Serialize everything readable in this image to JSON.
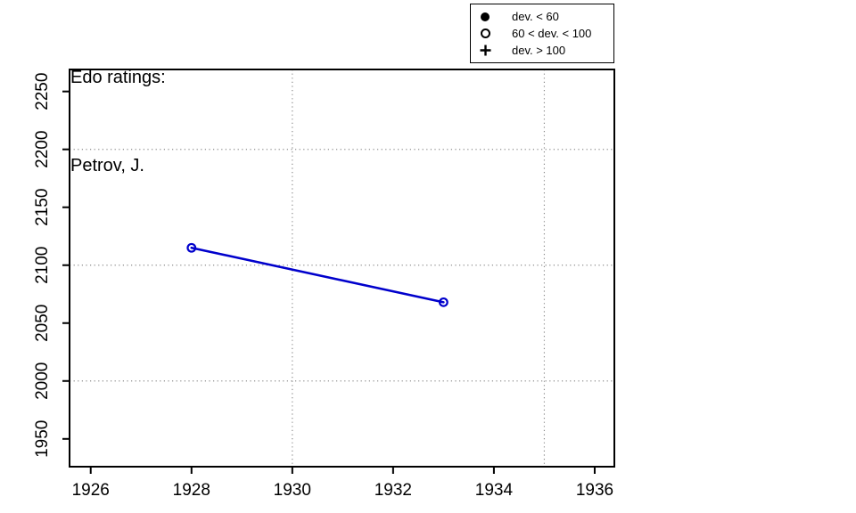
{
  "title": {
    "line1": "Edo ratings:",
    "line2": "Petrov, J."
  },
  "legend": {
    "items": [
      {
        "symbol": "filled-circle-icon",
        "label": "dev. < 60"
      },
      {
        "symbol": "open-circle-icon",
        "label": "60 < dev. < 100"
      },
      {
        "symbol": "plus-icon",
        "label": "dev. > 100"
      }
    ]
  },
  "chart_data": {
    "type": "line",
    "title": "Edo ratings: Petrov, J.",
    "xlabel": "",
    "ylabel": "",
    "xlim": [
      1925.58,
      1936.39
    ],
    "ylim": [
      1926,
      2269
    ],
    "x_ticks": [
      1926,
      1928,
      1930,
      1932,
      1934,
      1936
    ],
    "y_ticks": [
      1950,
      2000,
      2050,
      2100,
      2150,
      2200,
      2250
    ],
    "grid_x": [
      1930,
      1935
    ],
    "grid_y": [
      2000,
      2100,
      2200
    ],
    "grid_style": "dotted",
    "legend_position": "top-right-outside",
    "series": [
      {
        "name": "Petrov, J.",
        "dev_class": "60 < dev. < 100",
        "marker": "open-circle",
        "points": [
          {
            "x": 1928,
            "y": 2115
          },
          {
            "x": 1933,
            "y": 2068
          }
        ]
      }
    ],
    "colors": {
      "line": "#0000cc",
      "axis": "#000000",
      "grid": "#8c8c8c",
      "text": "#000000"
    }
  }
}
